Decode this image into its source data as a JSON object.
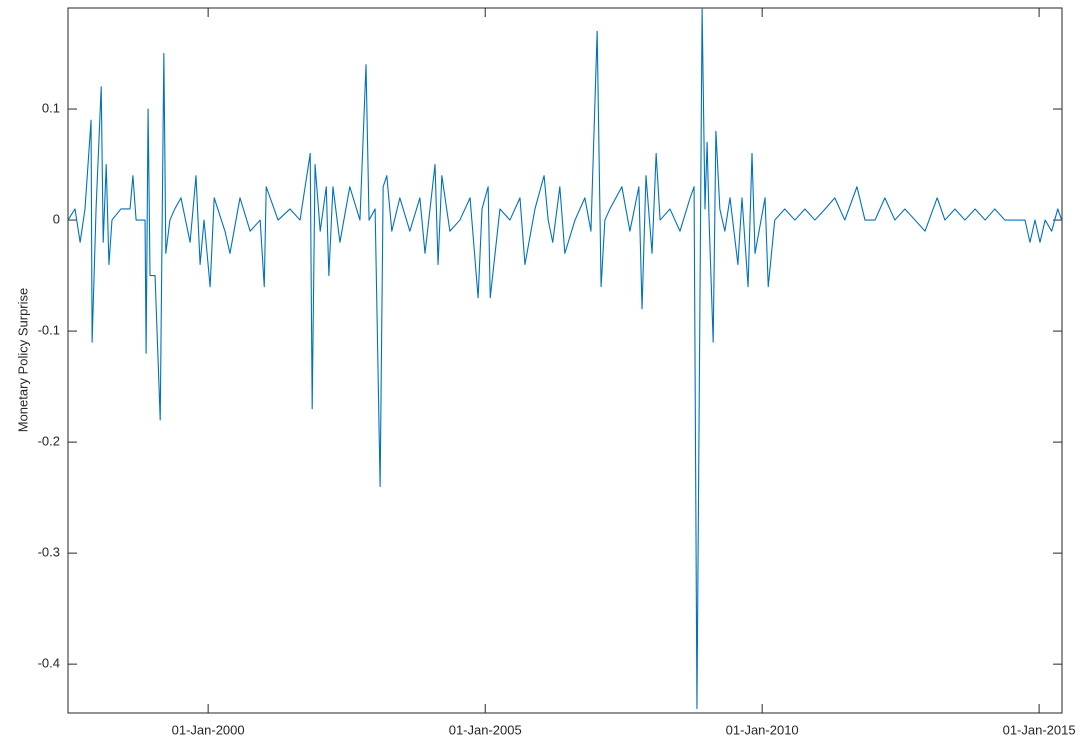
{
  "chart_data": {
    "type": "line",
    "y_label": "Monetary Policy Surprise",
    "color": "#0072bd",
    "x": [
      "1997-06-21",
      "1997-08-06",
      "1997-09-09",
      "1997-10-11",
      "1997-11-20",
      "1997-11-27",
      "1997-12-23",
      "1998-01-26",
      "1998-02-08",
      "1998-02-28",
      "1998-03-18",
      "1998-04-07",
      "1998-06-05",
      "1998-08-04",
      "1998-08-23",
      "1998-09-13",
      "1998-11-11",
      "1998-11-18",
      "1998-12-01",
      "1998-12-14",
      "1999-01-16",
      "1999-02-19",
      "1999-03-15",
      "1999-03-28",
      "1999-04-24",
      "1999-05-26",
      "1999-07-06",
      "1999-09-04",
      "1999-10-13",
      "1999-11-09",
      "1999-12-05",
      "2000-01-14",
      "2000-02-10",
      "2000-04-21",
      "2000-05-24",
      "2000-07-29",
      "2000-10-04",
      "2000-12-09",
      "2001-01-05",
      "2001-01-18",
      "2001-04-06",
      "2001-06-24",
      "2001-08-29",
      "2001-11-04",
      "2001-11-17",
      "2001-12-06",
      "2002-01-09",
      "2002-02-18",
      "2002-03-07",
      "2002-04-03",
      "2002-05-19",
      "2002-07-23",
      "2002-09-28",
      "2002-11-07",
      "2002-11-27",
      "2003-01-06",
      "2003-02-08",
      "2003-02-28",
      "2003-03-24",
      "2003-04-26",
      "2003-06-18",
      "2003-08-23",
      "2003-10-28",
      "2003-12-01",
      "2004-01-03",
      "2004-02-05",
      "2004-02-25",
      "2004-03-21",
      "2004-05-13",
      "2004-07-18",
      "2004-09-23",
      "2004-11-15",
      "2004-12-11",
      "2005-01-20",
      "2005-02-03",
      "2005-04-08",
      "2005-06-13",
      "2005-08-18",
      "2005-09-20",
      "2005-11-25",
      "2006-01-24",
      "2006-02-20",
      "2006-03-22",
      "2006-05-08",
      "2006-06-10",
      "2006-08-16",
      "2006-10-20",
      "2006-11-29",
      "2007-01-09",
      "2007-02-04",
      "2007-03-01",
      "2007-04-03",
      "2007-06-21",
      "2007-08-13",
      "2007-10-11",
      "2007-11-01",
      "2007-11-27",
      "2008-01-06",
      "2008-02-02",
      "2008-02-28",
      "2008-05-03",
      "2008-07-08",
      "2008-09-13",
      "2008-10-09",
      "2008-10-28",
      "2008-12-01",
      "2008-12-20",
      "2009-01-03",
      "2009-01-16",
      "2009-02-12",
      "2009-03-02",
      "2009-03-28",
      "2009-04-30",
      "2009-06-03",
      "2009-07-25",
      "2009-08-21",
      "2009-09-30",
      "2009-10-26",
      "2009-11-15",
      "2010-01-20",
      "2010-02-10",
      "2010-03-25",
      "2010-05-30",
      "2010-08-05",
      "2010-10-10",
      "2010-12-15",
      "2011-02-20",
      "2011-04-25",
      "2011-06-30",
      "2011-09-18",
      "2011-11-10",
      "2012-01-15",
      "2012-03-20",
      "2012-05-25",
      "2012-07-30",
      "2012-10-05",
      "2012-12-10",
      "2013-02-28",
      "2013-04-20",
      "2013-06-25",
      "2013-08-30",
      "2013-11-05",
      "2014-01-10",
      "2014-03-15",
      "2014-05-20",
      "2014-09-30",
      "2014-11-02",
      "2014-12-05",
      "2015-01-07",
      "2015-02-10",
      "2015-03-25",
      "2015-05-04",
      "2015-05-30"
    ],
    "values": [
      0,
      0.01,
      -0.02,
      0.01,
      0.09,
      -0.11,
      0.01,
      0.12,
      -0.02,
      0.05,
      -0.04,
      0,
      0.01,
      0.01,
      0.04,
      0,
      0,
      -0.12,
      0.1,
      -0.05,
      -0.05,
      -0.18,
      0.15,
      -0.03,
      0,
      0.01,
      0.02,
      -0.02,
      0.04,
      -0.04,
      0,
      -0.06,
      0.02,
      -0.01,
      -0.03,
      0.02,
      -0.01,
      0,
      -0.06,
      0.03,
      0,
      0.01,
      0,
      0.06,
      -0.17,
      0.05,
      -0.01,
      0.03,
      -0.05,
      0.03,
      -0.02,
      0.03,
      0,
      0.14,
      0,
      0.01,
      -0.24,
      0.03,
      0.04,
      -0.01,
      0.02,
      -0.01,
      0.02,
      -0.03,
      0.01,
      0.05,
      -0.04,
      0.04,
      -0.01,
      0,
      0.02,
      -0.07,
      0.01,
      0.03,
      -0.07,
      0.01,
      0,
      0.02,
      -0.04,
      0.01,
      0.04,
      0,
      -0.02,
      0.03,
      -0.03,
      0,
      0.02,
      -0.01,
      0.17,
      -0.06,
      0,
      0.01,
      0.03,
      -0.01,
      0.03,
      -0.08,
      0.04,
      -0.03,
      0.06,
      0,
      0.01,
      -0.01,
      0.02,
      0.03,
      -0.44,
      0.19,
      0.01,
      0.07,
      0,
      -0.11,
      0.08,
      0.01,
      -0.01,
      0.02,
      -0.04,
      0.02,
      -0.06,
      0.06,
      -0.03,
      0.02,
      -0.06,
      0,
      0.01,
      0,
      0.01,
      0,
      0.01,
      0.02,
      0,
      0.03,
      0,
      0,
      0.02,
      0,
      0.01,
      0,
      -0.01,
      0.02,
      0,
      0.01,
      0,
      0.01,
      0,
      0.01,
      0,
      0,
      -0.02,
      0,
      -0.02,
      0,
      -0.01,
      0.01,
      0
    ],
    "xlim": [
      "1997-06-21",
      "2015-06-01"
    ],
    "xticks": [
      {
        "value": "2000-01-01",
        "label": "01-Jan-2000"
      },
      {
        "value": "2005-01-01",
        "label": "01-Jan-2005"
      },
      {
        "value": "2010-01-01",
        "label": "01-Jan-2010"
      },
      {
        "value": "2015-01-01",
        "label": "01-Jan-2015"
      }
    ],
    "ylim": [
      -0.444,
      0.191
    ],
    "yticks": [
      -0.4,
      -0.3,
      -0.2,
      -0.1,
      0,
      0.1
    ]
  }
}
